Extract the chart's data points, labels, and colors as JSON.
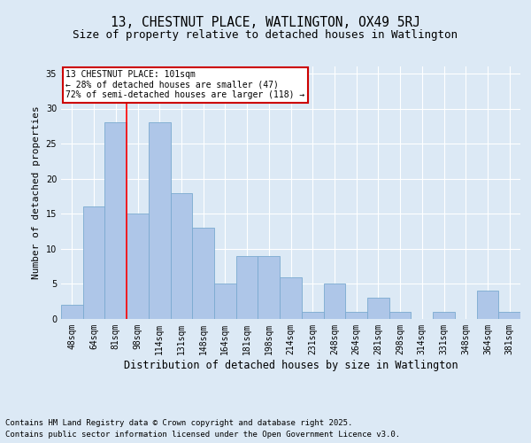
{
  "title": "13, CHESTNUT PLACE, WATLINGTON, OX49 5RJ",
  "subtitle": "Size of property relative to detached houses in Watlington",
  "xlabel": "Distribution of detached houses by size in Watlington",
  "ylabel": "Number of detached properties",
  "categories": [
    "48sqm",
    "64sqm",
    "81sqm",
    "98sqm",
    "114sqm",
    "131sqm",
    "148sqm",
    "164sqm",
    "181sqm",
    "198sqm",
    "214sqm",
    "231sqm",
    "248sqm",
    "264sqm",
    "281sqm",
    "298sqm",
    "314sqm",
    "331sqm",
    "348sqm",
    "364sqm",
    "381sqm"
  ],
  "values": [
    2,
    16,
    28,
    15,
    28,
    18,
    13,
    5,
    9,
    9,
    6,
    1,
    5,
    1,
    3,
    1,
    0,
    1,
    0,
    4,
    1
  ],
  "bar_color": "#aec6e8",
  "bar_edge_color": "#7aaad0",
  "red_line_x": 2.5,
  "annotation_text": "13 CHESTNUT PLACE: 101sqm\n← 28% of detached houses are smaller (47)\n72% of semi-detached houses are larger (118) →",
  "annotation_box_color": "#ffffff",
  "annotation_box_edge_color": "#cc0000",
  "ylim": [
    0,
    36
  ],
  "yticks": [
    0,
    5,
    10,
    15,
    20,
    25,
    30,
    35
  ],
  "bg_color": "#dce9f5",
  "plot_bg_color": "#dce9f5",
  "footer_line1": "Contains HM Land Registry data © Crown copyright and database right 2025.",
  "footer_line2": "Contains public sector information licensed under the Open Government Licence v3.0.",
  "title_fontsize": 10.5,
  "subtitle_fontsize": 9,
  "xlabel_fontsize": 8.5,
  "ylabel_fontsize": 8,
  "tick_fontsize": 7,
  "footer_fontsize": 6.5
}
